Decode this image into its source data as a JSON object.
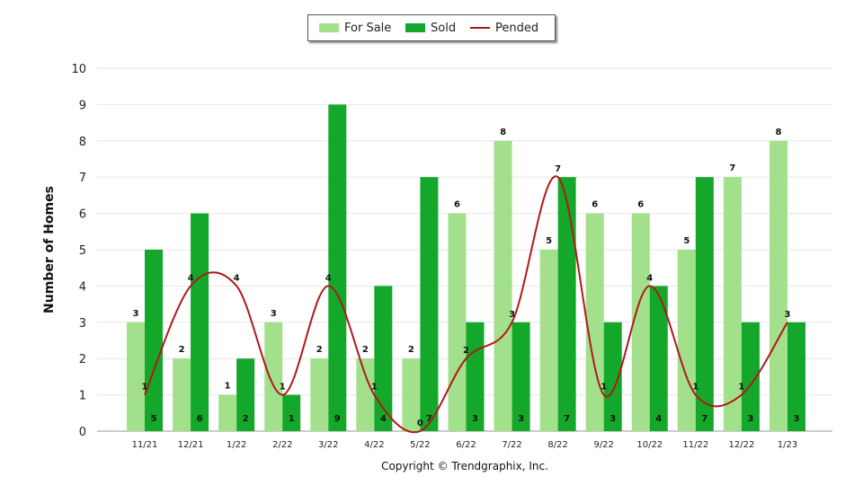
{
  "chart_data": {
    "type": "bar",
    "categories": [
      "11/21",
      "12/21",
      "1/22",
      "2/22",
      "3/22",
      "4/22",
      "5/22",
      "6/22",
      "7/22",
      "8/22",
      "9/22",
      "10/22",
      "11/22",
      "12/22",
      "1/23"
    ],
    "series": [
      {
        "name": "For Sale",
        "type": "bar",
        "color": "#a3e08c",
        "values": [
          3,
          2,
          1,
          3,
          2,
          2,
          2,
          6,
          8,
          5,
          6,
          6,
          5,
          7,
          8
        ]
      },
      {
        "name": "Sold",
        "type": "bar",
        "color": "#14a82a",
        "values": [
          5,
          6,
          2,
          1,
          9,
          4,
          7,
          3,
          3,
          7,
          3,
          4,
          7,
          3,
          3
        ]
      },
      {
        "name": "Pended",
        "type": "line",
        "color": "#b01818",
        "values": [
          1,
          4,
          4,
          1,
          4,
          1,
          0,
          2,
          3,
          7,
          1,
          4,
          1,
          1,
          3
        ]
      }
    ],
    "ylabel": "Number of Homes",
    "ylim": [
      0,
      10
    ],
    "yticks": [
      0,
      1,
      2,
      3,
      4,
      5,
      6,
      7,
      8,
      9,
      10
    ],
    "grid": true,
    "legend_position": "top-center"
  },
  "legend": {
    "for_sale": "For Sale",
    "sold": "Sold",
    "pended": "Pended"
  },
  "footer": {
    "copyright": "Copyright © Trendgraphix, Inc."
  }
}
